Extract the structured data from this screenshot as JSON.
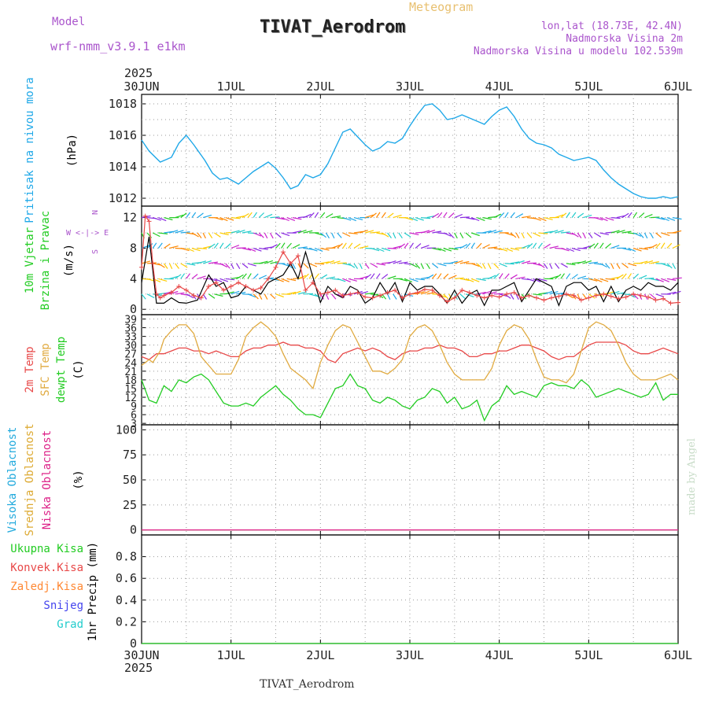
{
  "header": {
    "model_label": "Model",
    "model_name": "wrf-nmm_v3.9.1  e1km",
    "title": "TIVAT_Aerodrom",
    "meteogram_label": "Meteogram",
    "lonlat": "lon,lat (18.73E, 42.4N)",
    "elevation": "Nadmorska Visina 2m",
    "model_elevation": "Nadmorska Visina u modelu 102.539m",
    "footer_station": "TIVAT_Aerodrom",
    "watermark": "made by Angel"
  },
  "time_axis": {
    "year_label": "2025",
    "ticks": [
      "30JUN",
      "1JUL",
      "2JUL",
      "3JUL",
      "4JUL",
      "5JUL",
      "6JUL"
    ]
  },
  "colors": {
    "pressure": "#1fa8e8",
    "temp2m": "#e84848",
    "sfc_temp": "#e0aa40",
    "dewpoint": "#22cc22",
    "cloud_high": "#22aadd",
    "cloud_mid": "#ddaa33",
    "cloud_low": "#dd2288",
    "gust": "#000000",
    "wind_speed": "#e84848"
  },
  "panels": {
    "pressure": {
      "label_left": "Pritisak na nivou mora",
      "unit": "(hPa)"
    },
    "wind": {
      "label_left1": "10m Vjetar",
      "label_left2": "Brzina i Pravac",
      "unit": "(m/s)",
      "compass_we": "W <-|-> E",
      "compass_ns_top": "N",
      "compass_ns_bottom": "S"
    },
    "temp": {
      "label1": "2m Temp",
      "label2": "SFC Temp",
      "label3": "dewpt Temp",
      "unit": "(C)"
    },
    "cloud": {
      "label1": "Visoka Oblacnost",
      "label2": "Srednja Oblacnost",
      "label3": "Niska Oblacnost",
      "unit": "(%)"
    },
    "precip": {
      "labels": [
        "Ukupna Kisa",
        "Konvek.Kisa",
        "Zaledj.Kisa",
        "Snijeg",
        "Grad"
      ],
      "label_colors": [
        "#22cc22",
        "#e84848",
        "#ff8833",
        "#4444ee",
        "#22cccc"
      ],
      "unit": "1hr Precip (mm)"
    }
  },
  "chart_data": [
    {
      "type": "line",
      "name": "Pritisak na nivou mora",
      "ylabel": "(hPa)",
      "xlim": [
        0,
        144
      ],
      "ylim": [
        1011.5,
        1018.6
      ],
      "yticks": [
        "1012",
        "1014",
        "1016",
        "1018"
      ],
      "series": [
        {
          "x": [
            0,
            2,
            5,
            8,
            10,
            12,
            14,
            17,
            19,
            21,
            23,
            26,
            28,
            30,
            32,
            34,
            36,
            38,
            40,
            42,
            44,
            46,
            48,
            50,
            52,
            54,
            56,
            58,
            60,
            62,
            64,
            66,
            68,
            70,
            72,
            74,
            76,
            78,
            80,
            82,
            84,
            86,
            88,
            90,
            92,
            94,
            96,
            98,
            100,
            102,
            104,
            106,
            108,
            110,
            112,
            114,
            116,
            118,
            120,
            122,
            124,
            126,
            128,
            130,
            132,
            134,
            136,
            138,
            140,
            142,
            144
          ],
          "y": [
            1015.7,
            1015.0,
            1014.3,
            1014.6,
            1015.5,
            1016.0,
            1015.4,
            1014.4,
            1013.6,
            1013.2,
            1013.3,
            1012.9,
            1013.3,
            1013.7,
            1014.0,
            1014.3,
            1013.9,
            1013.3,
            1012.6,
            1012.8,
            1013.5,
            1013.3,
            1013.5,
            1014.2,
            1015.2,
            1016.2,
            1016.4,
            1015.9,
            1015.4,
            1015.0,
            1015.2,
            1015.6,
            1015.5,
            1015.8,
            1016.6,
            1017.3,
            1017.9,
            1018.0,
            1017.6,
            1017.0,
            1017.1,
            1017.3,
            1017.1,
            1016.9,
            1016.7,
            1017.2,
            1017.6,
            1017.8,
            1017.2,
            1016.4,
            1015.8,
            1015.5,
            1015.4,
            1015.2,
            1014.8,
            1014.6,
            1014.4,
            1014.5,
            1014.6,
            1014.4,
            1013.8,
            1013.3,
            1012.9,
            1012.6,
            1012.3,
            1012.1,
            1012.0,
            1012.0,
            1012.1,
            1012.0,
            1012.1
          ]
        }
      ]
    },
    {
      "type": "line",
      "name": "10m Vjetar Brzina i Pravac",
      "ylabel": "(m/s)",
      "xlim": [
        0,
        144
      ],
      "ylim": [
        -0.7,
        13.5
      ],
      "yticks": [
        "0",
        "4",
        "8",
        "12"
      ],
      "series": [
        {
          "x": [
            0,
            2,
            4,
            6,
            8,
            10,
            12,
            15,
            18,
            20,
            22,
            24,
            26,
            28,
            30,
            32,
            34,
            36,
            38,
            40,
            42,
            44,
            48,
            50,
            52,
            54,
            56,
            58,
            60,
            62,
            64,
            66,
            68,
            70,
            72,
            74,
            76,
            78,
            80,
            82,
            84,
            86,
            88,
            90,
            92,
            94,
            96,
            98,
            100,
            102,
            104,
            106,
            108,
            110,
            112,
            114,
            116,
            118,
            120,
            122,
            124,
            126,
            128,
            130,
            132,
            134,
            136,
            138,
            140,
            142,
            144
          ],
          "y": [
            3.5,
            9.5,
            0.8,
            0.8,
            1.5,
            0.9,
            0.8,
            1.2,
            4.5,
            3.0,
            3.5,
            1.5,
            1.8,
            3.0,
            2.5,
            2.0,
            3.5,
            4.0,
            4.5,
            6.0,
            4.0,
            7.5,
            0.9,
            3.0,
            2.0,
            1.5,
            3.0,
            2.5,
            0.8,
            1.5,
            3.5,
            2.0,
            3.5,
            1.0,
            3.5,
            2.5,
            3.0,
            3.0,
            2.0,
            0.8,
            2.5,
            0.8,
            2.0,
            2.5,
            0.5,
            2.5,
            2.5,
            3.0,
            3.5,
            1.0,
            2.5,
            4.0,
            3.5,
            3.0,
            0.5,
            3.0,
            3.5,
            3.5,
            2.5,
            3.0,
            1.0,
            3.0,
            1.0,
            2.5,
            3.0,
            2.5,
            3.5,
            3.0,
            3.0,
            2.5,
            3.5
          ]
        },
        {
          "x": [
            0,
            1,
            2,
            3,
            4,
            5,
            6,
            8,
            10,
            12,
            14,
            16,
            18,
            20,
            22,
            24,
            26,
            28,
            30,
            32,
            34,
            36,
            38,
            40,
            42,
            44,
            46,
            48,
            50,
            52,
            54,
            56,
            58,
            60,
            62,
            64,
            66,
            68,
            70,
            72,
            74,
            76,
            78,
            80,
            82,
            84,
            86,
            88,
            90,
            92,
            94,
            96,
            98,
            100,
            102,
            104,
            106,
            108,
            110,
            112,
            114,
            116,
            118,
            120,
            122,
            124,
            126,
            128,
            130,
            132,
            134,
            136,
            138,
            140,
            142,
            144
          ],
          "y": [
            5.5,
            12.2,
            11.5,
            6.0,
            2.0,
            1.5,
            1.8,
            2.2,
            3.0,
            2.5,
            1.8,
            1.5,
            3.0,
            3.5,
            2.5,
            3.0,
            3.5,
            3.0,
            2.5,
            2.8,
            4.0,
            5.5,
            7.5,
            6.0,
            7.0,
            2.5,
            3.5,
            2.0,
            2.2,
            2.5,
            1.8,
            2.0,
            2.2,
            1.6,
            1.5,
            1.8,
            2.2,
            2.5,
            1.5,
            2.0,
            2.2,
            2.6,
            2.5,
            1.8,
            1.0,
            1.5,
            2.5,
            2.2,
            1.8,
            1.5,
            1.8,
            1.6,
            2.0,
            2.2,
            1.5,
            1.8,
            1.5,
            1.2,
            1.5,
            1.7,
            2.0,
            1.8,
            1.2,
            1.5,
            1.8,
            2.0,
            1.7,
            1.4,
            1.6,
            2.0,
            1.8,
            1.6,
            1.2,
            1.4,
            0.8,
            0.9
          ]
        }
      ]
    },
    {
      "type": "line",
      "name": "Temperatura",
      "ylabel": "(C)",
      "xlim": [
        0,
        144
      ],
      "ylim": [
        2.5,
        40.5
      ],
      "yticks": [
        "3",
        "6",
        "9",
        "12",
        "15",
        "18",
        "21",
        "24",
        "27",
        "30",
        "33",
        "36",
        "39"
      ],
      "series": [
        {
          "name": "2m Temp",
          "x": [
            0,
            2,
            4,
            6,
            8,
            10,
            12,
            14,
            16,
            18,
            20,
            22,
            24,
            26,
            28,
            30,
            32,
            34,
            36,
            38,
            40,
            42,
            44,
            46,
            48,
            50,
            52,
            54,
            56,
            58,
            60,
            62,
            64,
            66,
            68,
            70,
            72,
            74,
            76,
            78,
            80,
            82,
            84,
            86,
            88,
            90,
            92,
            94,
            96,
            98,
            100,
            102,
            104,
            106,
            108,
            110,
            112,
            114,
            116,
            118,
            120,
            122,
            124,
            126,
            128,
            130,
            132,
            134,
            136,
            138,
            140,
            142,
            144
          ],
          "y": [
            26,
            25,
            27,
            27,
            28,
            29,
            29,
            28,
            28,
            27,
            28,
            27,
            26,
            26,
            28,
            29,
            29,
            30,
            30,
            31,
            30,
            30,
            29,
            29,
            28,
            25,
            24,
            27,
            28,
            29,
            28,
            29,
            28,
            26,
            25,
            27,
            28,
            28,
            29,
            29,
            30,
            29,
            29,
            28,
            26,
            26,
            27,
            27,
            28,
            28,
            29,
            30,
            30,
            29,
            28,
            26,
            25,
            26,
            26,
            28,
            30,
            31,
            31,
            31,
            31,
            30,
            28,
            27,
            27,
            28,
            29,
            28,
            27
          ]
        },
        {
          "name": "SFC Temp",
          "x": [
            0,
            2,
            3,
            5,
            6,
            8,
            10,
            12,
            14,
            16,
            18,
            20,
            22,
            24,
            26,
            28,
            30,
            32,
            34,
            36,
            38,
            40,
            42,
            44,
            46,
            48,
            50,
            52,
            54,
            56,
            58,
            60,
            62,
            64,
            66,
            68,
            70,
            72,
            74,
            76,
            78,
            80,
            82,
            84,
            86,
            88,
            90,
            92,
            94,
            96,
            98,
            100,
            102,
            104,
            106,
            108,
            110,
            112,
            114,
            116,
            118,
            120,
            122,
            124,
            126,
            128,
            130,
            132,
            134,
            136,
            138,
            140,
            142,
            144
          ],
          "y": [
            23,
            25,
            24,
            28,
            32,
            35,
            37,
            37,
            34,
            26,
            23,
            20,
            20,
            20,
            25,
            33,
            36,
            38,
            36,
            33,
            27,
            22,
            20,
            18,
            15,
            24,
            30,
            35,
            37,
            36,
            31,
            26,
            21,
            21,
            20,
            22,
            25,
            33,
            36,
            37,
            35,
            30,
            24,
            20,
            18,
            18,
            18,
            18,
            22,
            30,
            35,
            37,
            36,
            32,
            25,
            19,
            18,
            18,
            17,
            20,
            28,
            36,
            38,
            37,
            35,
            30,
            24,
            20,
            18,
            18,
            18,
            19,
            20,
            18
          ]
        },
        {
          "name": "dewpt Temp",
          "x": [
            0,
            2,
            4,
            6,
            8,
            10,
            12,
            14,
            16,
            18,
            20,
            22,
            24,
            26,
            28,
            30,
            32,
            34,
            36,
            38,
            40,
            42,
            44,
            46,
            48,
            50,
            52,
            54,
            56,
            58,
            60,
            62,
            64,
            66,
            68,
            70,
            72,
            74,
            76,
            78,
            80,
            82,
            84,
            86,
            88,
            90,
            92,
            94,
            96,
            98,
            100,
            102,
            104,
            106,
            108,
            110,
            112,
            114,
            116,
            118,
            120,
            122,
            124,
            126,
            128,
            130,
            132,
            134,
            136,
            138,
            140,
            142,
            144
          ],
          "y": [
            18,
            11,
            10,
            16,
            14,
            18,
            17,
            19,
            20,
            18,
            14,
            10,
            9,
            9,
            10,
            9,
            12,
            14,
            16,
            13,
            11,
            8,
            6,
            6,
            5,
            10,
            15,
            16,
            20,
            16,
            15,
            11,
            10,
            12,
            11,
            9,
            8,
            11,
            12,
            15,
            14,
            10,
            12,
            8,
            9,
            11,
            4,
            9,
            11,
            16,
            13,
            14,
            13,
            12,
            16,
            17,
            16,
            16,
            15,
            18,
            16,
            12,
            13,
            14,
            15,
            14,
            13,
            12,
            13,
            17,
            11,
            13,
            13
          ]
        }
      ]
    },
    {
      "type": "line",
      "name": "Oblacnost",
      "ylabel": "(%)",
      "xlim": [
        0,
        144
      ],
      "ylim": [
        -5,
        105
      ],
      "yticks": [
        "0",
        "25",
        "50",
        "75",
        "100"
      ],
      "series": [
        {
          "name": "Visoka Oblacnost",
          "x": [
            0,
            144
          ],
          "y": [
            0,
            0
          ]
        },
        {
          "name": "Srednja Oblacnost",
          "x": [
            0,
            144
          ],
          "y": [
            0,
            0
          ]
        },
        {
          "name": "Niska Oblacnost",
          "x": [
            0,
            144
          ],
          "y": [
            0,
            0
          ]
        }
      ]
    },
    {
      "type": "line",
      "name": "1hr Precip",
      "ylabel": "1hr Precip (mm)",
      "xlim": [
        0,
        144
      ],
      "ylim": [
        0,
        1.0
      ],
      "yticks": [
        "0",
        "0.2",
        "0.4",
        "0.6",
        "0.8"
      ],
      "series": [
        {
          "name": "Ukupna Kisa",
          "x": [
            0,
            144
          ],
          "y": [
            0,
            0
          ]
        }
      ]
    }
  ]
}
